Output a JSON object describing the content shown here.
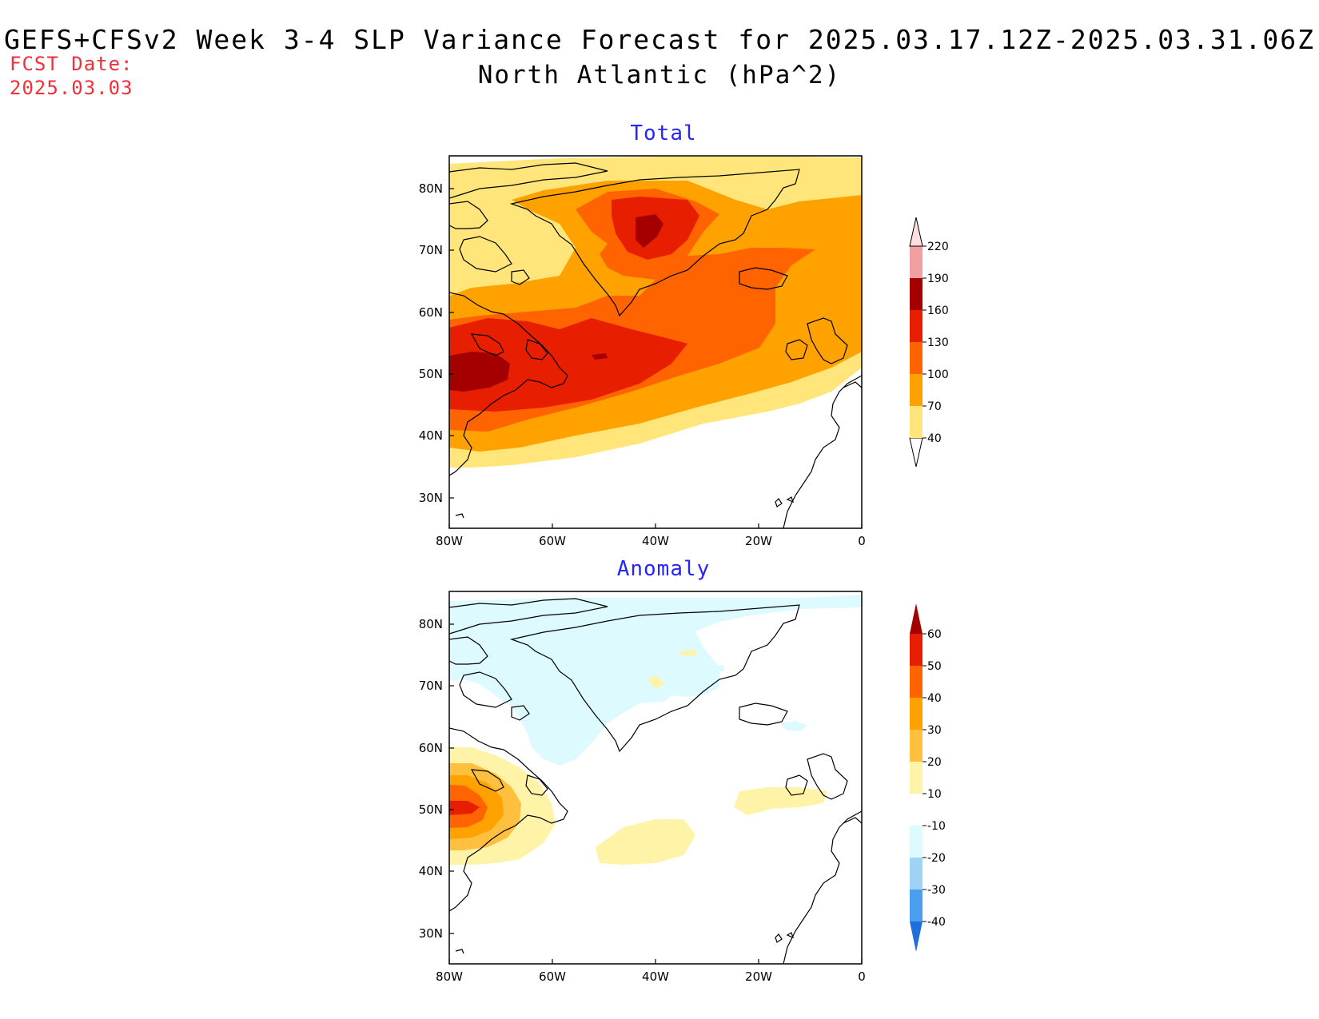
{
  "header": {
    "title": "GEFS+CFSv2 Week 3-4 SLP Variance Forecast for 2025.03.17.12Z-2025.03.31.06Z",
    "subtitle": "North Atlantic (hPa^2)",
    "fcst_label": "FCST Date:",
    "fcst_date": "2025.03.03"
  },
  "axes": {
    "lat_labels": [
      "80N",
      "70N",
      "60N",
      "50N",
      "40N",
      "30N"
    ],
    "lon_labels": [
      "80W",
      "60W",
      "40W",
      "20W",
      "0"
    ],
    "lat_range": [
      25,
      85
    ],
    "lon_range": [
      -80,
      0
    ]
  },
  "panels": [
    {
      "title": "Total",
      "colorbar": {
        "labels": [
          "40",
          "70",
          "100",
          "130",
          "160",
          "190",
          "220"
        ],
        "colors": [
          "#ffe57a",
          "#ffa200",
          "#ff6400",
          "#e81e00",
          "#a50000",
          "#f0a0a0",
          "#ffdede"
        ]
      }
    },
    {
      "title": "Anomaly",
      "colorbar": {
        "labels": [
          "60",
          "50",
          "40",
          "30",
          "20",
          "10",
          "-10",
          "-20",
          "-30",
          "-40"
        ],
        "colors": [
          "#a50000",
          "#e81e00",
          "#ff6400",
          "#ffa200",
          "#ffc040",
          "#fff3a8",
          "#ffffff",
          "#ddfaff",
          "#9ed3f5",
          "#4c9eee",
          "#1e6edc"
        ]
      }
    }
  ],
  "colors": {
    "title_red": "#f0303a",
    "panel_title_blue": "#2424ff"
  }
}
